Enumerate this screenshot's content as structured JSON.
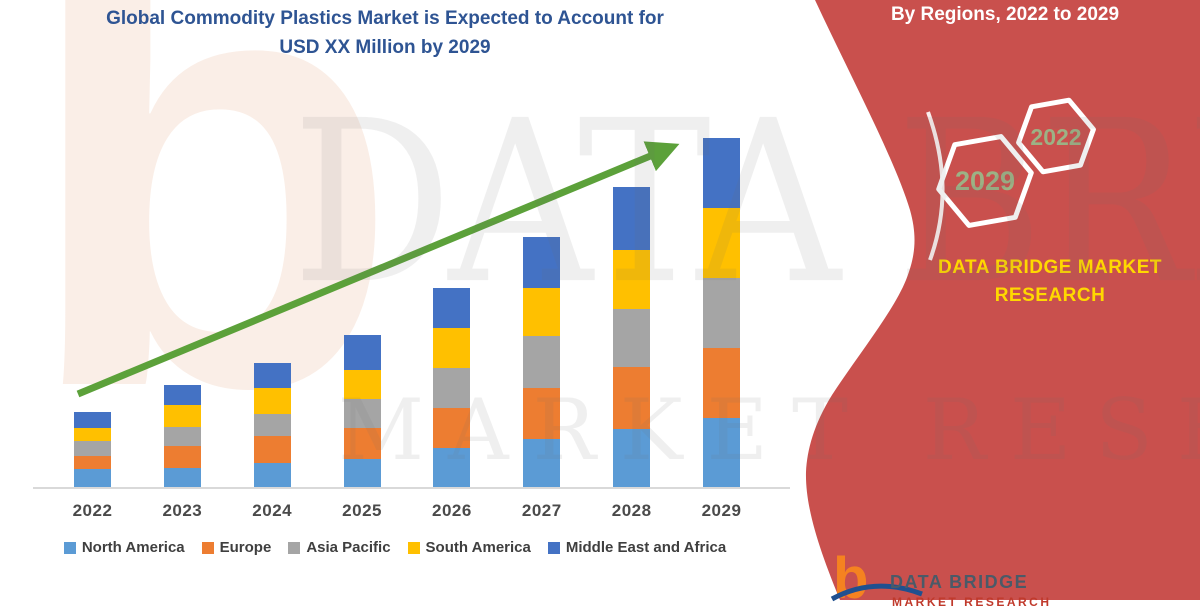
{
  "title": {
    "line1": "Global Commodity Plastics Market is Expected to Account for",
    "line2": "USD XX Million by 2029"
  },
  "right_panel": {
    "heading": "By Regions, 2022 to 2029",
    "hexagon_front_label": "2029",
    "hexagon_back_label": "2022",
    "brand_line1": "DATA BRIDGE MARKET",
    "brand_line2": "RESEARCH"
  },
  "watermark": {
    "big_text": "DATA BRIDGE",
    "sub_text": "MARKET RESEARCH",
    "corner_glyph": "b"
  },
  "footer_logo": {
    "glyph": "b",
    "name": "DATA BRIDGE",
    "subtitle": "MARKET RESEARCH"
  },
  "colors": {
    "ribbon_red": "#c9504d",
    "title_navy": "#2e5493",
    "brand_yellow": "#ffd800",
    "hex_year_green": "#9cb285",
    "arrow_green": "#5ca13a",
    "axis_gray": "#d9d9d9",
    "label_gray": "#4a4a4a",
    "logo_orange": "#f58220",
    "logo_navy": "#20508f"
  },
  "chart_data": {
    "type": "bar",
    "stacked": true,
    "title": "Global Commodity Plastics Market is Expected to Account for USD XX Million by 2029",
    "categories": [
      "2022",
      "2023",
      "2024",
      "2025",
      "2026",
      "2027",
      "2028",
      "2029"
    ],
    "series": [
      {
        "name": "North America",
        "color": "#5B9BD5",
        "values": [
          18,
          19,
          24,
          28,
          39,
          48,
          58,
          69
        ]
      },
      {
        "name": "Europe",
        "color": "#ED7D31",
        "values": [
          13,
          22,
          27,
          31,
          40,
          51,
          62,
          70
        ]
      },
      {
        "name": "Asia Pacific",
        "color": "#A5A5A5",
        "values": [
          15,
          19,
          22,
          29,
          40,
          52,
          58,
          70
        ]
      },
      {
        "name": "South America",
        "color": "#FFC000",
        "values": [
          13,
          22,
          26,
          29,
          40,
          48,
          59,
          70
        ]
      },
      {
        "name": "Middle East and Africa",
        "color": "#4472C4",
        "values": [
          16,
          20,
          25,
          35,
          40,
          51,
          63,
          70
        ]
      }
    ],
    "stack_totals": [
      75,
      102,
      124,
      152,
      199,
      250,
      300,
      349
    ],
    "value_units": "relative height units (y-axis not shown; magnitudes labeled as USD XX Million)",
    "xlabel": "",
    "ylabel": "",
    "y_axis_shown": false,
    "grid": false,
    "legend_position": "bottom",
    "annotations": [
      "green upward trend arrow rising from the 2022 bar to the top of the 2029 bar"
    ]
  }
}
